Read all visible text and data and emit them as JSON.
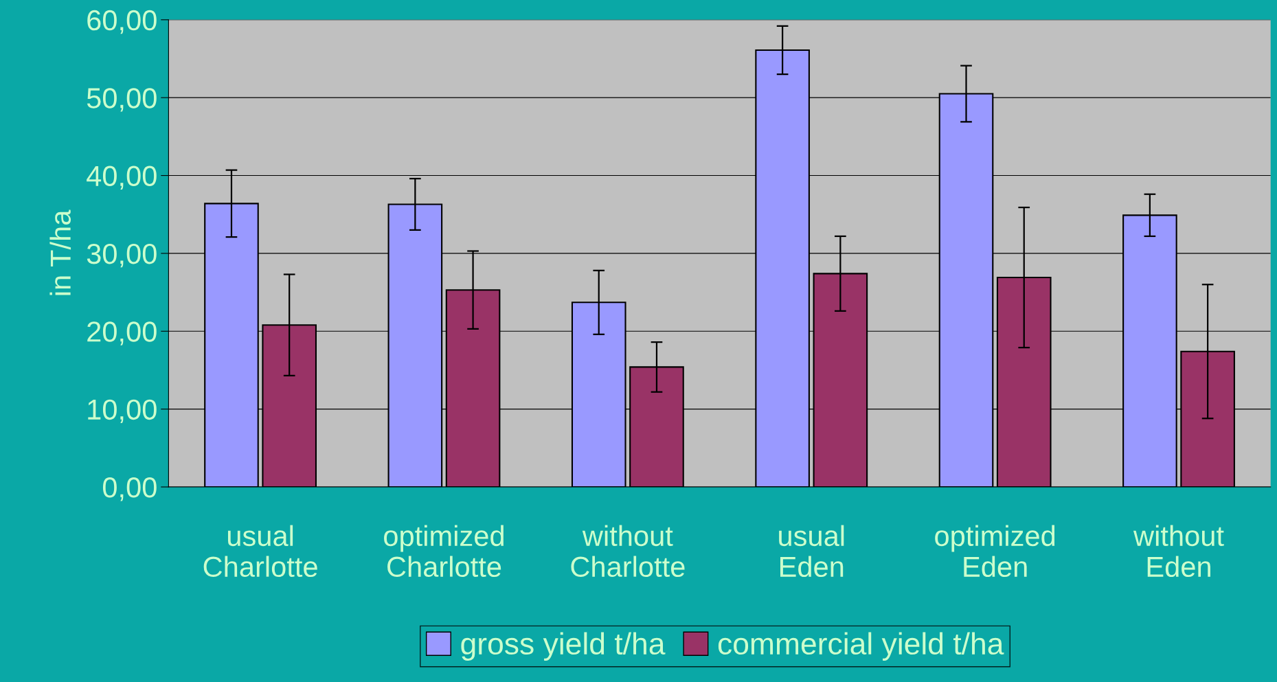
{
  "chart_data": {
    "type": "bar",
    "ylabel": "in T/ha",
    "categories": [
      "usual\nCharlotte",
      "optimized\nCharlotte",
      "without\nCharlotte",
      "usual\nEden",
      "optimized\nEden",
      "without\nEden"
    ],
    "series": [
      {
        "name": "gross yield t/ha",
        "color": "#9999ff",
        "values": [
          36.4,
          36.3,
          23.7,
          56.1,
          50.5,
          34.9
        ],
        "errors": [
          4.3,
          3.3,
          4.1,
          3.1,
          3.6,
          2.7
        ]
      },
      {
        "name": "commercial yield t/ha",
        "color": "#993366",
        "values": [
          20.8,
          25.3,
          15.4,
          27.4,
          26.9,
          17.4
        ],
        "errors": [
          6.5,
          5.0,
          3.2,
          4.8,
          9.0,
          8.6
        ]
      }
    ],
    "ylim": [
      0,
      60
    ],
    "yticks": [
      {
        "value": 0,
        "label": "0,00"
      },
      {
        "value": 10,
        "label": "10,00"
      },
      {
        "value": 20,
        "label": "20,00"
      },
      {
        "value": 30,
        "label": "30,00"
      },
      {
        "value": 40,
        "label": "40,00"
      },
      {
        "value": 50,
        "label": "50,00"
      },
      {
        "value": 60,
        "label": "60,00"
      }
    ],
    "grid": "y",
    "legend": "bottom"
  }
}
